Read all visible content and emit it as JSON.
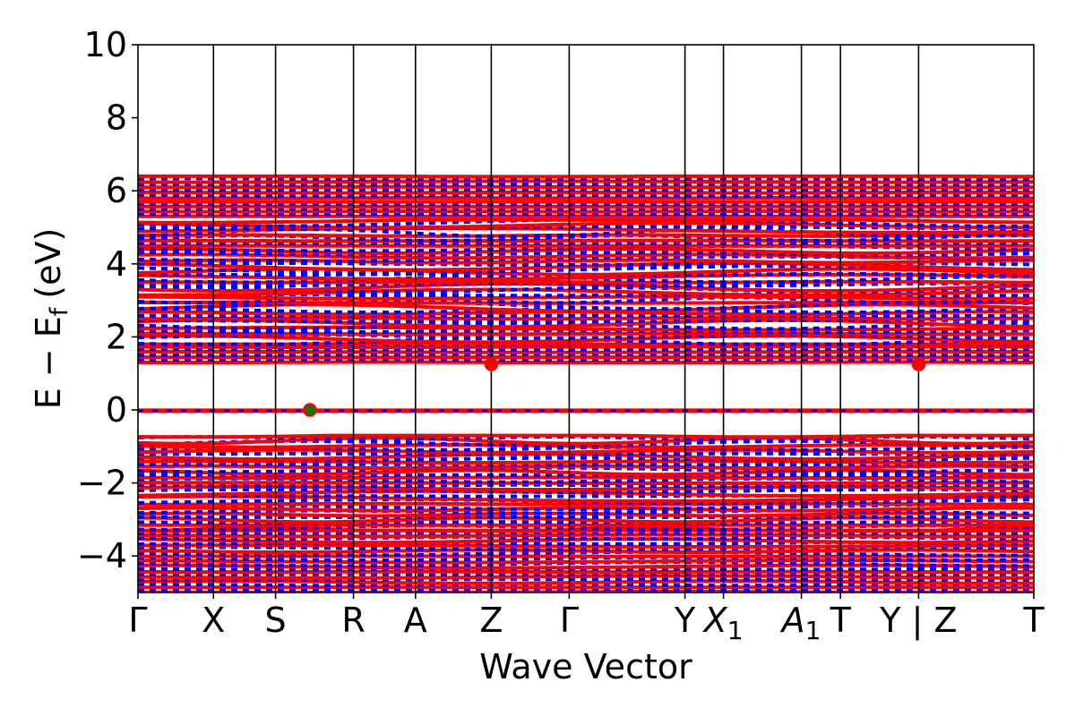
{
  "chart_data": {
    "type": "line",
    "title": "",
    "xlabel": "Wave Vector",
    "ylabel": "E − E",
    "ylabel_sub": "f",
    "ylabel_unit": "(eV)",
    "ylim": [
      -5,
      10
    ],
    "yticks": [
      {
        "value": -4,
        "label": "−4"
      },
      {
        "value": -2,
        "label": "−2"
      },
      {
        "value": 0,
        "label": "0"
      },
      {
        "value": 2,
        "label": "2"
      },
      {
        "value": 4,
        "label": "4"
      },
      {
        "value": 6,
        "label": "6"
      },
      {
        "value": 8,
        "label": "8"
      },
      {
        "value": 10,
        "label": "10"
      }
    ],
    "kpath": [
      {
        "pos": 0.0,
        "label": "Γ"
      },
      {
        "pos": 0.0843,
        "label": "X"
      },
      {
        "pos": 0.1536,
        "label": "S"
      },
      {
        "pos": 0.2406,
        "label": "R"
      },
      {
        "pos": 0.3098,
        "label": "A"
      },
      {
        "pos": 0.3944,
        "label": "Z"
      },
      {
        "pos": 0.4814,
        "label": "Γ"
      },
      {
        "pos": 0.6106,
        "label": "Y"
      },
      {
        "pos": 0.6536,
        "label": "X",
        "sub": "1"
      },
      {
        "pos": 0.7406,
        "label": "A",
        "sub": "1"
      },
      {
        "pos": 0.7842,
        "label": "T"
      },
      {
        "pos": 0.8714,
        "label": "Y | Z"
      },
      {
        "pos": 1.0,
        "label": "T"
      }
    ],
    "vertical_lines": [
      0.0843,
      0.1536,
      0.2406,
      0.3098,
      0.3944,
      0.4814,
      0.6106,
      0.6536,
      0.7406,
      0.7842,
      0.8714
    ],
    "series": [
      {
        "color": "#ff0000"
      },
      {
        "color": "#0000ff"
      }
    ],
    "band_regions": [
      [
        -5.0,
        -3.3
      ],
      [
        -3.3,
        -0.7
      ],
      [
        1.3,
        1.8
      ],
      [
        1.8,
        5.2
      ],
      [
        5.3,
        5.7
      ],
      [
        5.8,
        6.4
      ]
    ],
    "flat_band": -0.02,
    "markers": [
      {
        "label": "vbm",
        "x": 0.192,
        "y": 0.0,
        "color": "#008000",
        "edge": "#ff0000"
      },
      {
        "label": "cbm",
        "x": 0.3944,
        "y": 1.25,
        "color": "#ff0000"
      },
      {
        "label": "cbm",
        "x": 0.8714,
        "y": 1.25,
        "color": "#ff0000"
      }
    ]
  }
}
